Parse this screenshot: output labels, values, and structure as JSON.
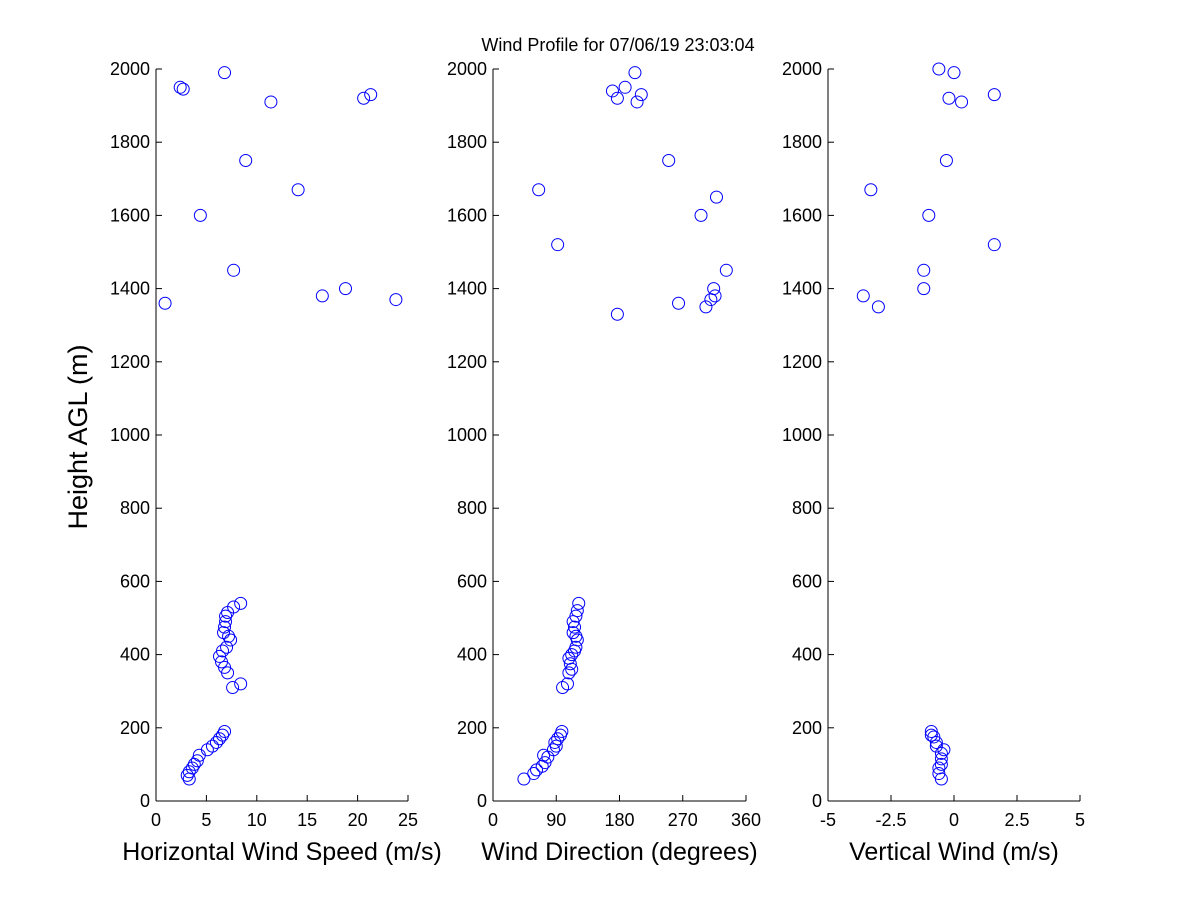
{
  "colors": {
    "marker": "#0000ff",
    "axis": "#000000",
    "background": "#ffffff"
  },
  "chart_data": [
    {
      "type": "scatter",
      "title": "Wind Profile for  07/06/19 23:03:04",
      "xlabel": "Horizontal Wind Speed (m/s)",
      "ylabel": "Height AGL (m)",
      "xlim": [
        0,
        25
      ],
      "ylim": [
        0,
        2000
      ],
      "xticks": [
        "0",
        "5",
        "10",
        "15",
        "20",
        "25"
      ],
      "xtick_values": [
        0,
        5,
        10,
        15,
        20,
        25
      ],
      "yticks": [
        "0",
        "200",
        "400",
        "600",
        "800",
        "1000",
        "1200",
        "1400",
        "1600",
        "1800",
        "2000"
      ],
      "grid": false,
      "marker": "open-circle",
      "points": [
        [
          3.3,
          60
        ],
        [
          3.1,
          70
        ],
        [
          3.3,
          80
        ],
        [
          3.6,
          90
        ],
        [
          3.8,
          100
        ],
        [
          4.1,
          110
        ],
        [
          4.3,
          125
        ],
        [
          5.1,
          140
        ],
        [
          5.6,
          150
        ],
        [
          6.0,
          160
        ],
        [
          6.3,
          170
        ],
        [
          6.6,
          180
        ],
        [
          6.8,
          190
        ],
        [
          7.6,
          310
        ],
        [
          8.4,
          320
        ],
        [
          7.1,
          350
        ],
        [
          6.8,
          365
        ],
        [
          6.5,
          380
        ],
        [
          6.3,
          395
        ],
        [
          6.6,
          410
        ],
        [
          7.0,
          420
        ],
        [
          7.4,
          440
        ],
        [
          7.2,
          450
        ],
        [
          6.7,
          460
        ],
        [
          6.8,
          475
        ],
        [
          6.9,
          490
        ],
        [
          6.9,
          505
        ],
        [
          7.1,
          515
        ],
        [
          7.7,
          530
        ],
        [
          8.4,
          540
        ],
        [
          0.9,
          1360
        ],
        [
          23.8,
          1370
        ],
        [
          16.5,
          1380
        ],
        [
          18.8,
          1400
        ],
        [
          7.7,
          1450
        ],
        [
          4.4,
          1600
        ],
        [
          14.1,
          1670
        ],
        [
          8.9,
          1750
        ],
        [
          11.4,
          1910
        ],
        [
          20.6,
          1920
        ],
        [
          21.3,
          1930
        ],
        [
          2.7,
          1945
        ],
        [
          2.4,
          1950
        ],
        [
          6.8,
          1990
        ]
      ]
    },
    {
      "type": "scatter",
      "xlabel": "Wind Direction (degrees)",
      "xlim": [
        0,
        360
      ],
      "ylim": [
        0,
        2000
      ],
      "xticks": [
        "0",
        "90",
        "180",
        "270",
        "360"
      ],
      "xtick_values": [
        0,
        90,
        180,
        270,
        360
      ],
      "yticks": [
        "0",
        "200",
        "400",
        "600",
        "800",
        "1000",
        "1200",
        "1400",
        "1600",
        "1800",
        "2000"
      ],
      "grid": false,
      "marker": "open-circle",
      "points": [
        [
          44,
          60
        ],
        [
          58,
          75
        ],
        [
          62,
          85
        ],
        [
          70,
          95
        ],
        [
          74,
          105
        ],
        [
          72,
          125
        ],
        [
          78,
          120
        ],
        [
          86,
          140
        ],
        [
          90,
          150
        ],
        [
          88,
          160
        ],
        [
          92,
          170
        ],
        [
          96,
          180
        ],
        [
          98,
          190
        ],
        [
          99,
          310
        ],
        [
          106,
          320
        ],
        [
          108,
          350
        ],
        [
          112,
          360
        ],
        [
          110,
          375
        ],
        [
          108,
          390
        ],
        [
          112,
          400
        ],
        [
          116,
          410
        ],
        [
          118,
          420
        ],
        [
          120,
          440
        ],
        [
          118,
          450
        ],
        [
          114,
          460
        ],
        [
          116,
          475
        ],
        [
          114,
          490
        ],
        [
          118,
          505
        ],
        [
          120,
          520
        ],
        [
          122,
          540
        ],
        [
          177,
          1330
        ],
        [
          303,
          1350
        ],
        [
          264,
          1360
        ],
        [
          310,
          1370
        ],
        [
          316,
          1380
        ],
        [
          314,
          1400
        ],
        [
          332,
          1450
        ],
        [
          92,
          1520
        ],
        [
          296,
          1600
        ],
        [
          318,
          1650
        ],
        [
          65,
          1670
        ],
        [
          250,
          1750
        ],
        [
          205,
          1910
        ],
        [
          177,
          1920
        ],
        [
          211,
          1930
        ],
        [
          170,
          1940
        ],
        [
          188,
          1950
        ],
        [
          202,
          1990
        ]
      ]
    },
    {
      "type": "scatter",
      "xlabel": "Vertical Wind (m/s)",
      "xlim": [
        -5,
        5
      ],
      "ylim": [
        0,
        2000
      ],
      "xticks": [
        "-5",
        "-2.5",
        "0",
        "2.5",
        "5"
      ],
      "xtick_values": [
        -5,
        -2.5,
        0,
        2.5,
        5
      ],
      "yticks": [
        "0",
        "200",
        "400",
        "600",
        "800",
        "1000",
        "1200",
        "1400",
        "1600",
        "1800",
        "2000"
      ],
      "grid": false,
      "marker": "open-circle",
      "points": [
        [
          -0.5,
          60
        ],
        [
          -0.6,
          75
        ],
        [
          -0.6,
          90
        ],
        [
          -0.5,
          100
        ],
        [
          -0.5,
          115
        ],
        [
          -0.5,
          130
        ],
        [
          -0.4,
          140
        ],
        [
          -0.7,
          150
        ],
        [
          -0.7,
          160
        ],
        [
          -0.8,
          175
        ],
        [
          -0.9,
          180
        ],
        [
          -0.9,
          190
        ],
        [
          -3.0,
          1350
        ],
        [
          -3.6,
          1380
        ],
        [
          -1.2,
          1400
        ],
        [
          -1.2,
          1450
        ],
        [
          1.6,
          1520
        ],
        [
          -1.0,
          1600
        ],
        [
          -3.3,
          1670
        ],
        [
          -0.3,
          1750
        ],
        [
          0.3,
          1910
        ],
        [
          -0.2,
          1920
        ],
        [
          1.6,
          1930
        ],
        [
          0.0,
          1990
        ],
        [
          -0.6,
          2000
        ]
      ]
    }
  ]
}
